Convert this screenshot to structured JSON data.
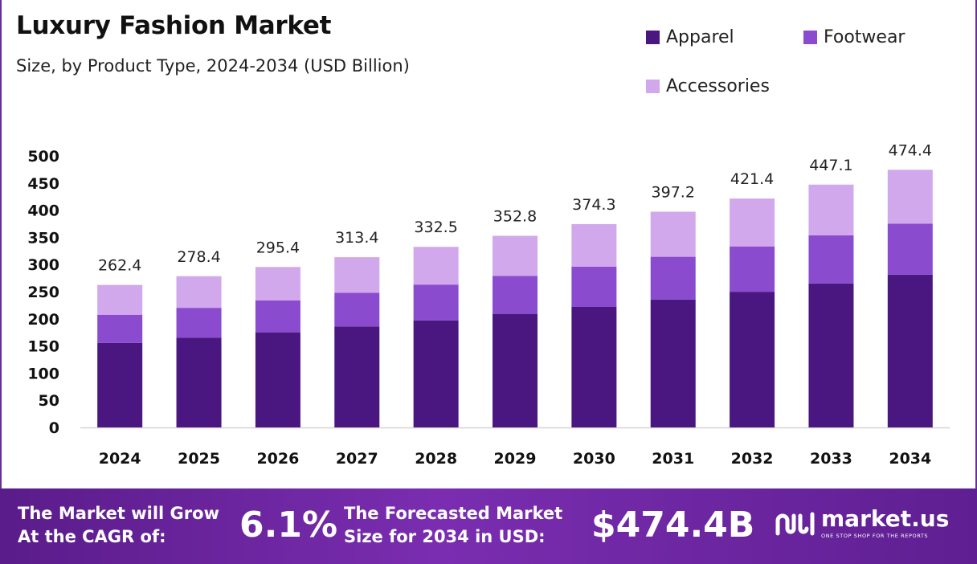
{
  "header": {
    "title": "Luxury Fashion Market",
    "subtitle": "Size, by Product Type, 2024-2034 (USD Billion)"
  },
  "legend": [
    {
      "label": "Apparel",
      "color": "#4a1680"
    },
    {
      "label": "Footwear",
      "color": "#8a4bcf"
    },
    {
      "label": "Accessories",
      "color": "#d1a8ec"
    }
  ],
  "chart_data": {
    "type": "bar",
    "stacked": true,
    "categories": [
      "2024",
      "2025",
      "2026",
      "2027",
      "2028",
      "2029",
      "2030",
      "2031",
      "2032",
      "2033",
      "2034"
    ],
    "series": [
      {
        "name": "Apparel",
        "color": "#4a1680",
        "values": [
          155.5,
          165.0,
          175.1,
          185.8,
          197.1,
          209.1,
          221.9,
          235.5,
          249.8,
          265.1,
          281.3
        ]
      },
      {
        "name": "Footwear",
        "color": "#8a4bcf",
        "values": [
          52.0,
          55.2,
          58.6,
          62.1,
          65.9,
          69.9,
          74.2,
          78.7,
          83.5,
          88.6,
          94.0
        ]
      },
      {
        "name": "Accessories",
        "color": "#d1a8ec",
        "values": [
          54.9,
          58.2,
          61.7,
          65.5,
          69.5,
          73.8,
          78.2,
          83.0,
          88.1,
          93.4,
          99.1
        ]
      }
    ],
    "totals": [
      "262.4",
      "278.4",
      "295.4",
      "313.4",
      "332.5",
      "352.8",
      "374.3",
      "397.2",
      "421.4",
      "447.1",
      "474.4"
    ],
    "ylim": [
      0,
      500
    ],
    "yticks": [
      "0",
      "50",
      "100",
      "150",
      "200",
      "250",
      "300",
      "350",
      "400",
      "450",
      "500"
    ],
    "grid": false,
    "legend_position": "top-right"
  },
  "footer": {
    "cagr_line1": "The Market will Grow",
    "cagr_line2": "At the CAGR of:",
    "cagr_value": "6.1%",
    "forecast_line1": "The Forecasted Market",
    "forecast_line2": "Size for 2034 in USD:",
    "forecast_value": "$474.4B",
    "logo_name": "market.us",
    "logo_tagline": "ONE STOP SHOP FOR THE REPORTS"
  }
}
